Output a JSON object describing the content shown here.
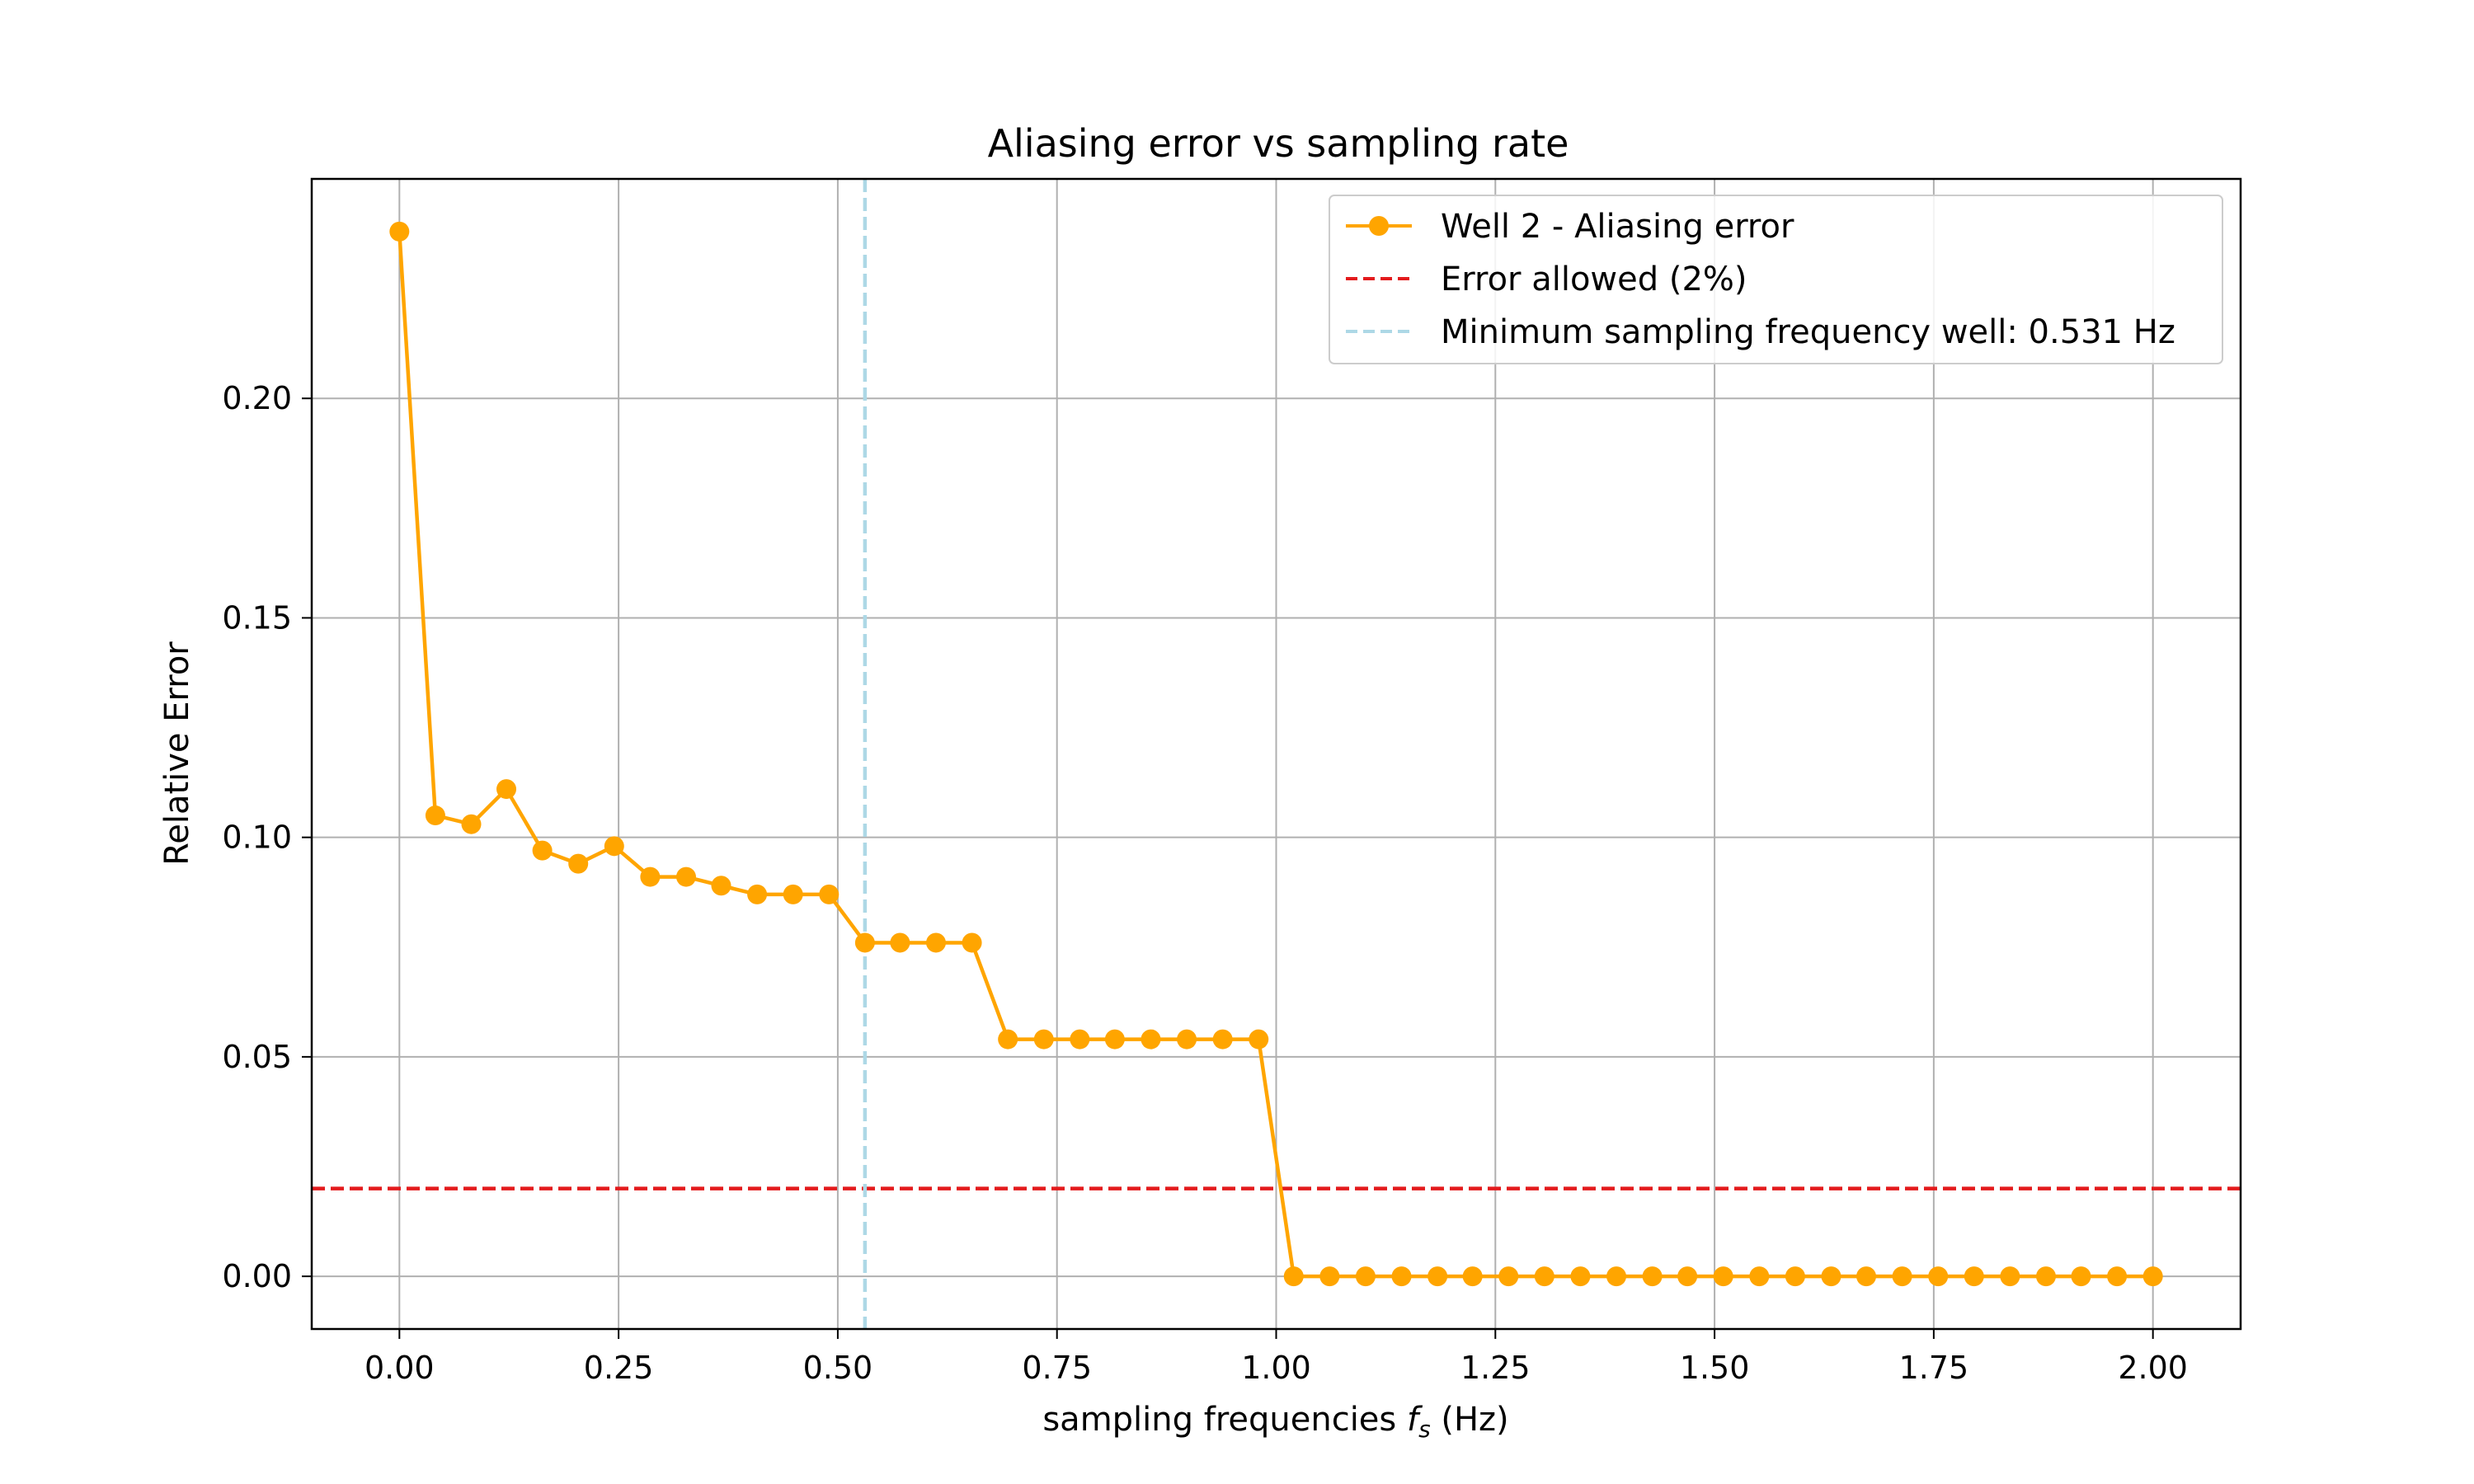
{
  "chart_data": {
    "type": "line",
    "title": "Aliasing error vs sampling rate",
    "xlabel_prefix": "sampling frequencies ",
    "xlabel_symbol": "f",
    "xlabel_subscript": "s",
    "xlabel_suffix": " (Hz)",
    "ylabel": "Relative Error",
    "xlim": [
      -0.1,
      2.1
    ],
    "ylim": [
      -0.012,
      0.25
    ],
    "x_ticks": [
      0.0,
      0.25,
      0.5,
      0.75,
      1.0,
      1.25,
      1.5,
      1.75,
      2.0
    ],
    "x_tick_labels": [
      "0.00",
      "0.25",
      "0.50",
      "0.75",
      "1.00",
      "1.25",
      "1.50",
      "1.75",
      "2.00"
    ],
    "y_ticks": [
      0.0,
      0.05,
      0.1,
      0.15,
      0.2
    ],
    "y_tick_labels": [
      "0.00",
      "0.05",
      "0.10",
      "0.15",
      "0.20"
    ],
    "grid": true,
    "legend_position": "top-right",
    "series": [
      {
        "name": "Well 2 - Aliasing error",
        "color": "#ffa500",
        "marker": "circle",
        "x": [
          0.0,
          0.041,
          0.082,
          0.122,
          0.163,
          0.204,
          0.245,
          0.286,
          0.327,
          0.367,
          0.408,
          0.449,
          0.49,
          0.531,
          0.571,
          0.612,
          0.653,
          0.694,
          0.735,
          0.776,
          0.816,
          0.857,
          0.898,
          0.939,
          0.98,
          1.02,
          1.061,
          1.102,
          1.143,
          1.184,
          1.224,
          1.265,
          1.306,
          1.347,
          1.388,
          1.429,
          1.469,
          1.51,
          1.551,
          1.592,
          1.633,
          1.673,
          1.714,
          1.755,
          1.796,
          1.837,
          1.878,
          1.918,
          1.959,
          2.0
        ],
        "y": [
          0.238,
          0.105,
          0.103,
          0.111,
          0.097,
          0.094,
          0.098,
          0.091,
          0.091,
          0.089,
          0.087,
          0.087,
          0.087,
          0.076,
          0.076,
          0.076,
          0.076,
          0.054,
          0.054,
          0.054,
          0.054,
          0.054,
          0.054,
          0.054,
          0.054,
          0.0,
          0.0,
          0.0,
          0.0,
          0.0,
          0.0,
          0.0,
          0.0,
          0.0,
          0.0,
          0.0,
          0.0,
          0.0,
          0.0,
          0.0,
          0.0,
          0.0,
          0.0,
          0.0,
          0.0,
          0.0,
          0.0,
          0.0,
          0.0,
          0.0
        ]
      }
    ],
    "reference_lines": [
      {
        "name": "Error allowed (2%)",
        "orientation": "horizontal",
        "value": 0.02,
        "color": "#e31a1c",
        "style": "dashed"
      },
      {
        "name": "Minimum sampling frequency well: 0.531 Hz",
        "orientation": "vertical",
        "value": 0.531,
        "color": "#add8e6",
        "style": "dashed"
      }
    ]
  }
}
